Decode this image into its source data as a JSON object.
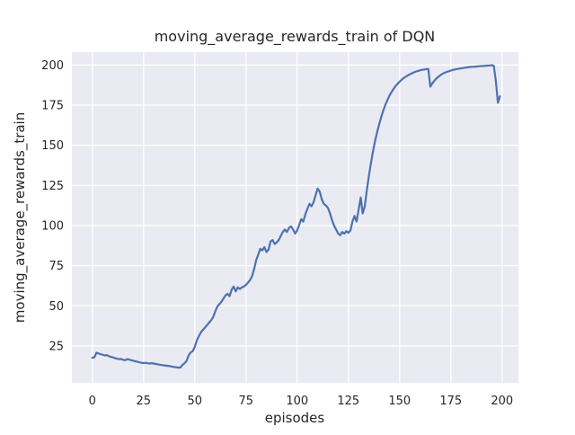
{
  "figure": {
    "title": "moving_average_rewards_train of DQN",
    "xlabel": "episodes",
    "ylabel": "moving_average_rewards_train"
  },
  "colors": {
    "figure_bg": "#ffffff",
    "axes_bg": "#eaeaf2",
    "grid": "#ffffff",
    "line": "#4c72b0",
    "text": "#262626"
  },
  "chart_data": {
    "type": "line",
    "title": "moving_average_rewards_train of DQN",
    "xlabel": "episodes",
    "ylabel": "moving_average_rewards_train",
    "xlim": [
      -10,
      208
    ],
    "ylim": [
      2,
      208
    ],
    "xticks": [
      0,
      25,
      50,
      75,
      100,
      125,
      150,
      175,
      200
    ],
    "yticks": [
      25,
      50,
      75,
      100,
      125,
      150,
      175,
      200
    ],
    "grid": true,
    "legend": false,
    "series": [
      {
        "name": "moving_average_rewards_train",
        "x_start": 0,
        "x_step": 1,
        "values": [
          17.6,
          18.0,
          20.8,
          20.3,
          19.9,
          19.5,
          19.1,
          19.3,
          18.7,
          18.2,
          17.9,
          17.4,
          17.1,
          16.7,
          16.9,
          16.4,
          16.1,
          16.8,
          16.5,
          16.1,
          15.8,
          15.4,
          15.1,
          14.8,
          14.5,
          14.3,
          14.5,
          14.2,
          14.0,
          14.3,
          14.0,
          13.8,
          13.5,
          13.3,
          13.1,
          12.9,
          12.7,
          12.6,
          12.4,
          12.1,
          11.9,
          11.7,
          11.5,
          11.6,
          13.2,
          14.2,
          15.7,
          19.0,
          21.0,
          21.7,
          24.5,
          28.5,
          31.0,
          33.5,
          35.0,
          36.5,
          38.0,
          39.5,
          41.0,
          43.0,
          46.5,
          49.5,
          51.0,
          52.5,
          54.5,
          56.5,
          57.5,
          56.0,
          60.0,
          62.0,
          59.0,
          61.5,
          60.5,
          61.5,
          62.0,
          63.0,
          64.5,
          66.0,
          68.5,
          73.0,
          78.5,
          82.0,
          85.5,
          84.5,
          86.5,
          83.5,
          85.0,
          90.0,
          91.0,
          88.5,
          89.5,
          91.0,
          93.5,
          96.0,
          97.5,
          96.0,
          98.5,
          99.5,
          97.5,
          95.0,
          97.0,
          100.5,
          104.0,
          102.5,
          107.0,
          110.5,
          113.5,
          112.0,
          114.5,
          119.0,
          123.0,
          121.0,
          116.5,
          113.5,
          112.5,
          111.0,
          107.5,
          103.5,
          100.0,
          97.5,
          95.0,
          94.0,
          96.0,
          95.0,
          96.5,
          95.5,
          97.0,
          102.5,
          106.0,
          102.5,
          110.0,
          117.5,
          107.5,
          112.0,
          122.0,
          131.0,
          139.0,
          146.0,
          152.5,
          158.0,
          163.0,
          167.5,
          171.5,
          175.0,
          178.0,
          180.8,
          183.0,
          185.0,
          186.8,
          188.3,
          189.6,
          190.8,
          191.8,
          192.7,
          193.5,
          194.2,
          194.8,
          195.4,
          195.9,
          196.3,
          196.7,
          197.0,
          197.2,
          197.4,
          197.5,
          186.5,
          188.5,
          190.2,
          191.6,
          192.8,
          193.7,
          194.5,
          195.1,
          195.7,
          196.1,
          196.5,
          196.9,
          197.2,
          197.5,
          197.7,
          197.9,
          198.1,
          198.3,
          198.5,
          198.7,
          198.8,
          198.9,
          199.0,
          199.1,
          199.2,
          199.3,
          199.4,
          199.5,
          199.6,
          199.7,
          199.9,
          199.5,
          190.0,
          176.5,
          180.5
        ]
      }
    ]
  }
}
